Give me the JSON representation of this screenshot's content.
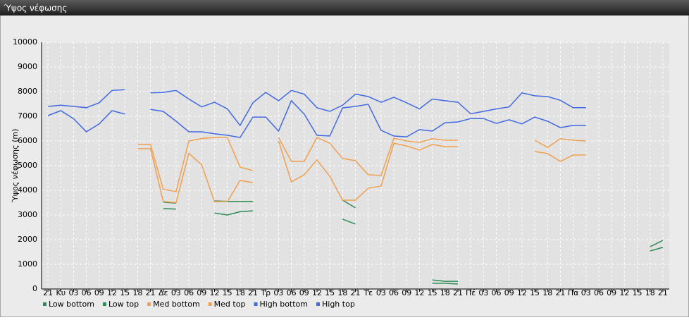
{
  "chart_data": {
    "type": "line",
    "title": "Ύψος νέφωσης",
    "y_label": "Ύψος νέφωσης (m)",
    "categories": [
      "21",
      "Κυ",
      "03",
      "06",
      "09",
      "12",
      "15",
      "18",
      "21",
      "Δε",
      "03",
      "06",
      "09",
      "12",
      "15",
      "18",
      "21",
      "Τρ",
      "03",
      "06",
      "09",
      "12",
      "15",
      "18",
      "21",
      "Τε",
      "03",
      "06",
      "09",
      "12",
      "15",
      "18",
      "21",
      "Πέ",
      "03",
      "06",
      "09",
      "12",
      "15",
      "18",
      "21",
      "Πα",
      "03",
      "06",
      "09",
      "12",
      "15",
      "18",
      "21"
    ],
    "ylim": [
      0,
      10000
    ],
    "yticks": [
      0,
      1000,
      2000,
      3000,
      4000,
      5000,
      6000,
      7000,
      8000,
      9000,
      10000
    ],
    "grid": true,
    "series": [
      {
        "name": "Low bottom",
        "color": "#2e8b57",
        "values": [
          null,
          null,
          null,
          null,
          null,
          null,
          null,
          null,
          null,
          3260,
          3240,
          null,
          null,
          3080,
          3000,
          3130,
          3170,
          null,
          null,
          null,
          null,
          null,
          null,
          2830,
          2630,
          null,
          null,
          null,
          null,
          null,
          230,
          230,
          200,
          null,
          null,
          null,
          null,
          null,
          null,
          null,
          null,
          null,
          null,
          null,
          null,
          null,
          null,
          1540,
          1690
        ]
      },
      {
        "name": "Low top",
        "color": "#2e8b57",
        "values": [
          null,
          null,
          null,
          null,
          null,
          null,
          null,
          null,
          null,
          3520,
          3480,
          null,
          null,
          3570,
          3550,
          3550,
          3550,
          null,
          null,
          null,
          null,
          null,
          null,
          3600,
          3290,
          null,
          null,
          null,
          null,
          null,
          370,
          310,
          310,
          null,
          null,
          null,
          null,
          null,
          null,
          null,
          null,
          null,
          null,
          null,
          null,
          null,
          null,
          1710,
          1970
        ]
      },
      {
        "name": "Med bottom",
        "color": "#f0a050",
        "values": [
          null,
          null,
          null,
          null,
          null,
          null,
          null,
          5690,
          5690,
          3550,
          3500,
          5500,
          5030,
          3540,
          3540,
          4400,
          4310,
          null,
          6000,
          4340,
          4630,
          5230,
          4570,
          3600,
          3600,
          4090,
          4170,
          5910,
          5800,
          5630,
          5860,
          5770,
          5770,
          null,
          null,
          null,
          null,
          null,
          5570,
          5490,
          5170,
          5430,
          5430,
          null,
          null,
          null,
          null,
          null,
          null
        ]
      },
      {
        "name": "Med top",
        "color": "#f0a050",
        "values": [
          null,
          null,
          null,
          null,
          null,
          null,
          null,
          5860,
          5860,
          4050,
          3950,
          6000,
          6100,
          6140,
          6140,
          4940,
          4800,
          null,
          6140,
          5170,
          5170,
          6140,
          5910,
          5290,
          5200,
          4630,
          4600,
          6110,
          6000,
          5940,
          6090,
          6030,
          6030,
          null,
          null,
          null,
          null,
          null,
          6030,
          5740,
          6090,
          6030,
          6000,
          null,
          null,
          null,
          null,
          null,
          null
        ]
      },
      {
        "name": "High bottom",
        "color": "#4169e1",
        "values": [
          7030,
          7230,
          6900,
          6370,
          6690,
          7230,
          7090,
          null,
          7280,
          7200,
          6800,
          6370,
          6370,
          6290,
          6230,
          6140,
          6970,
          6970,
          6400,
          7630,
          7090,
          6230,
          6200,
          7340,
          7400,
          7490,
          6430,
          6200,
          6170,
          6460,
          6400,
          6740,
          6770,
          6910,
          6910,
          6710,
          6860,
          6690,
          6970,
          6800,
          6540,
          6630,
          6630,
          null,
          null,
          null,
          null,
          null,
          null
        ]
      },
      {
        "name": "High top",
        "color": "#4169e1",
        "values": [
          7400,
          7450,
          7400,
          7350,
          7550,
          8050,
          8080,
          null,
          7950,
          7970,
          8050,
          7700,
          7380,
          7570,
          7300,
          6630,
          7550,
          7970,
          7630,
          8050,
          7900,
          7350,
          7200,
          7450,
          7900,
          7800,
          7570,
          7770,
          7550,
          7300,
          7700,
          7630,
          7570,
          7100,
          7200,
          7300,
          7380,
          7950,
          7830,
          7800,
          7650,
          7350,
          7350,
          null,
          null,
          null,
          null,
          null,
          null
        ]
      }
    ]
  }
}
